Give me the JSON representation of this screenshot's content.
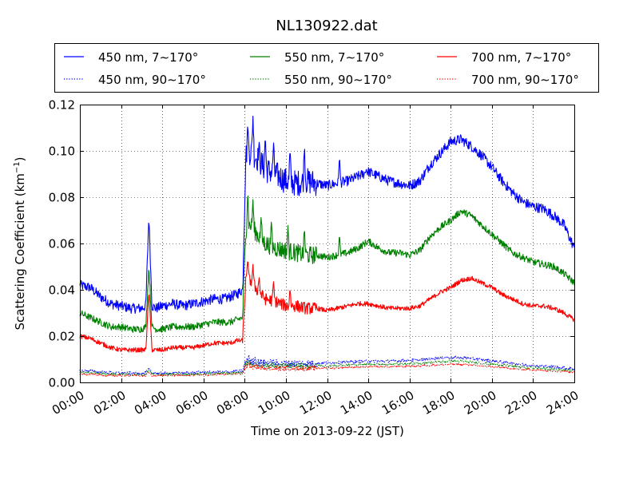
{
  "chart_data": {
    "type": "line",
    "title": "NL130922.dat",
    "xlabel": "Time on 2013-09-22 (JST)",
    "ylabel": "Scattering Coefficient (km",
    "ylabel_sup": "−1",
    "ylabel_close": ")",
    "x_unit": "hours",
    "xlim": [
      0,
      24
    ],
    "ylim": [
      0,
      0.12
    ],
    "grid": true,
    "legend_placement": "top, above plot, 3 columns",
    "xticks": [
      "00:00",
      "02:00",
      "04:00",
      "06:00",
      "08:00",
      "10:00",
      "12:00",
      "14:00",
      "16:00",
      "18:00",
      "20:00",
      "22:00",
      "24:00"
    ],
    "yticks": [
      "0.00",
      "0.02",
      "0.04",
      "0.06",
      "0.08",
      "0.10",
      "0.12"
    ],
    "baseline_hours": [
      0,
      0.5,
      1,
      1.5,
      2,
      2.5,
      3,
      3.2,
      3.35,
      3.5,
      3.7,
      4,
      4.5,
      5,
      5.5,
      6,
      6.5,
      7,
      7.3,
      7.6,
      7.9,
      8.05,
      8.3,
      8.6,
      9,
      9.5,
      10,
      10.5,
      11,
      11.5,
      12,
      12.5,
      13,
      13.5,
      14,
      14.5,
      15,
      15.5,
      16,
      16.5,
      17,
      17.5,
      18,
      18.5,
      19,
      19.5,
      20,
      20.5,
      21,
      21.5,
      22,
      22.5,
      23,
      23.5,
      24
    ],
    "series": [
      {
        "name": "450 nm, 7∼170°",
        "color": "#0000ff",
        "style": "solid",
        "noise": 0.0022,
        "values": [
          0.042,
          0.041,
          0.037,
          0.034,
          0.033,
          0.032,
          0.032,
          0.033,
          0.072,
          0.033,
          0.032,
          0.033,
          0.034,
          0.033,
          0.034,
          0.035,
          0.036,
          0.036,
          0.037,
          0.038,
          0.04,
          0.098,
          0.1,
          0.097,
          0.092,
          0.09,
          0.087,
          0.086,
          0.087,
          0.086,
          0.085,
          0.086,
          0.087,
          0.089,
          0.091,
          0.089,
          0.087,
          0.086,
          0.085,
          0.087,
          0.094,
          0.099,
          0.104,
          0.105,
          0.102,
          0.098,
          0.093,
          0.087,
          0.082,
          0.078,
          0.076,
          0.075,
          0.072,
          0.068,
          0.058
        ],
        "spikes": [
          [
            8.15,
            0.112
          ],
          [
            8.4,
            0.115
          ],
          [
            8.7,
            0.104
          ],
          [
            9.0,
            0.107
          ],
          [
            9.4,
            0.104
          ],
          [
            10.2,
            0.101
          ],
          [
            10.9,
            0.103
          ],
          [
            12.6,
            0.098
          ],
          [
            13.9,
            0.092
          ]
        ]
      },
      {
        "name": "550 nm, 7∼170°",
        "color": "#008000",
        "style": "solid",
        "noise": 0.0015,
        "values": [
          0.03,
          0.028,
          0.026,
          0.024,
          0.024,
          0.023,
          0.023,
          0.024,
          0.05,
          0.024,
          0.023,
          0.023,
          0.024,
          0.024,
          0.024,
          0.025,
          0.026,
          0.026,
          0.026,
          0.027,
          0.028,
          0.066,
          0.068,
          0.064,
          0.06,
          0.058,
          0.057,
          0.056,
          0.055,
          0.055,
          0.054,
          0.055,
          0.056,
          0.058,
          0.061,
          0.058,
          0.056,
          0.056,
          0.055,
          0.057,
          0.063,
          0.067,
          0.07,
          0.074,
          0.072,
          0.068,
          0.064,
          0.06,
          0.056,
          0.054,
          0.052,
          0.051,
          0.05,
          0.047,
          0.043
        ],
        "spikes": [
          [
            8.15,
            0.083
          ],
          [
            8.4,
            0.079
          ],
          [
            8.8,
            0.072
          ],
          [
            9.3,
            0.07
          ],
          [
            10.1,
            0.068
          ],
          [
            10.9,
            0.067
          ],
          [
            12.6,
            0.064
          ]
        ]
      },
      {
        "name": "700 nm, 7∼170°",
        "color": "#ff0000",
        "style": "solid",
        "noise": 0.001,
        "values": [
          0.02,
          0.019,
          0.017,
          0.015,
          0.014,
          0.014,
          0.014,
          0.014,
          0.039,
          0.014,
          0.014,
          0.014,
          0.015,
          0.015,
          0.015,
          0.016,
          0.017,
          0.017,
          0.017,
          0.018,
          0.018,
          0.044,
          0.044,
          0.04,
          0.036,
          0.035,
          0.033,
          0.033,
          0.032,
          0.032,
          0.031,
          0.032,
          0.033,
          0.034,
          0.034,
          0.033,
          0.032,
          0.032,
          0.032,
          0.033,
          0.036,
          0.039,
          0.041,
          0.044,
          0.045,
          0.043,
          0.041,
          0.038,
          0.036,
          0.034,
          0.033,
          0.033,
          0.032,
          0.03,
          0.027
        ],
        "spikes": [
          [
            8.15,
            0.054
          ],
          [
            8.4,
            0.051
          ],
          [
            8.7,
            0.046
          ],
          [
            9.4,
            0.044
          ],
          [
            10.2,
            0.041
          ]
        ]
      },
      {
        "name": "450 nm, 90∼170°",
        "color": "#0000ff",
        "style": "dotted",
        "noise": 0.0006,
        "values": [
          0.005,
          0.005,
          0.0045,
          0.0042,
          0.004,
          0.004,
          0.004,
          0.004,
          0.006,
          0.004,
          0.004,
          0.004,
          0.004,
          0.004,
          0.0042,
          0.0043,
          0.0044,
          0.0045,
          0.0046,
          0.0047,
          0.005,
          0.009,
          0.009,
          0.0088,
          0.0085,
          0.0083,
          0.0082,
          0.0082,
          0.0082,
          0.0083,
          0.0084,
          0.0086,
          0.0088,
          0.009,
          0.0092,
          0.0092,
          0.0092,
          0.0094,
          0.0095,
          0.0097,
          0.0102,
          0.0106,
          0.0108,
          0.0107,
          0.0104,
          0.0098,
          0.0093,
          0.0088,
          0.0082,
          0.0077,
          0.0073,
          0.007,
          0.0067,
          0.0063,
          0.006
        ],
        "spikes": [
          [
            8.2,
            0.012
          ],
          [
            8.5,
            0.011
          ]
        ]
      },
      {
        "name": "550 nm, 90∼170°",
        "color": "#008000",
        "style": "dotted",
        "noise": 0.0005,
        "values": [
          0.0042,
          0.0042,
          0.0038,
          0.0035,
          0.0034,
          0.0034,
          0.0034,
          0.0034,
          0.0052,
          0.0034,
          0.0034,
          0.0034,
          0.0035,
          0.0035,
          0.0036,
          0.0037,
          0.0038,
          0.0039,
          0.004,
          0.0041,
          0.0043,
          0.0078,
          0.0078,
          0.0076,
          0.0073,
          0.0071,
          0.007,
          0.007,
          0.007,
          0.0071,
          0.0072,
          0.0073,
          0.0075,
          0.0077,
          0.0079,
          0.0079,
          0.0079,
          0.008,
          0.0081,
          0.0082,
          0.0086,
          0.009,
          0.0092,
          0.0091,
          0.0088,
          0.0083,
          0.0079,
          0.0075,
          0.007,
          0.0066,
          0.0063,
          0.006,
          0.0057,
          0.0054,
          0.0051
        ],
        "spikes": [
          [
            8.2,
            0.01
          ]
        ]
      },
      {
        "name": "700 nm, 90∼170°",
        "color": "#ff0000",
        "style": "dotted",
        "noise": 0.0004,
        "values": [
          0.0035,
          0.0035,
          0.0032,
          0.003,
          0.0029,
          0.0029,
          0.0029,
          0.0029,
          0.0045,
          0.0029,
          0.0029,
          0.0029,
          0.003,
          0.003,
          0.0031,
          0.0032,
          0.0033,
          0.0034,
          0.0035,
          0.0036,
          0.0038,
          0.0068,
          0.0068,
          0.0066,
          0.0063,
          0.0061,
          0.006,
          0.006,
          0.006,
          0.0061,
          0.0062,
          0.0063,
          0.0065,
          0.0066,
          0.0068,
          0.0068,
          0.0068,
          0.0069,
          0.007,
          0.0071,
          0.0074,
          0.0077,
          0.0079,
          0.0078,
          0.0075,
          0.0071,
          0.0068,
          0.0064,
          0.006,
          0.0057,
          0.0054,
          0.0052,
          0.005,
          0.0047,
          0.0044
        ],
        "spikes": [
          [
            8.2,
            0.009
          ]
        ]
      }
    ],
    "legend_order": [
      0,
      1,
      2,
      3,
      4,
      5
    ]
  }
}
